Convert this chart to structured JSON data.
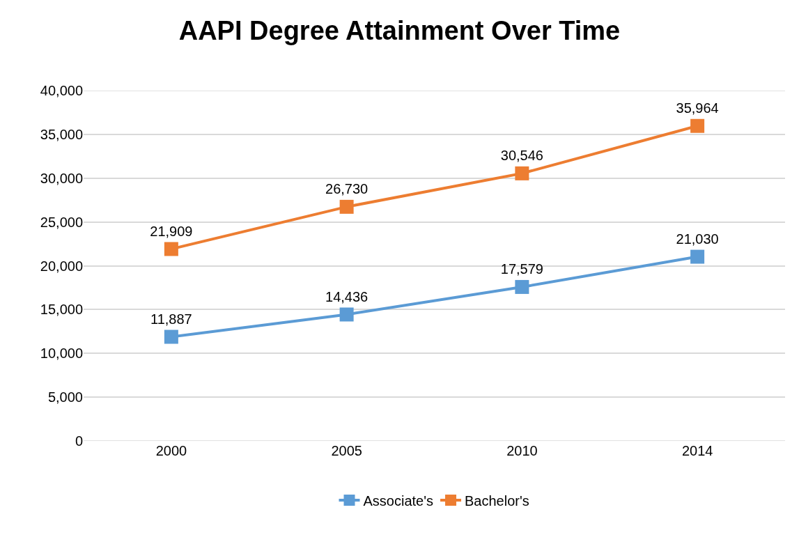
{
  "chart_data": {
    "type": "line",
    "title": "AAPI Degree Attainment Over Time",
    "categories": [
      "2000",
      "2005",
      "2010",
      "2014"
    ],
    "series": [
      {
        "name": "Associate's",
        "color": "#5b9bd5",
        "values": [
          11887,
          14436,
          17579,
          21030
        ],
        "value_labels": [
          "11,887",
          "14,436",
          "17,579",
          "21,030"
        ]
      },
      {
        "name": "Bachelor's",
        "color": "#ed7d31",
        "values": [
          21909,
          26730,
          30546,
          35964
        ],
        "value_labels": [
          "21,909",
          "26,730",
          "30,546",
          "35,964"
        ]
      }
    ],
    "ylim": [
      0,
      40000
    ],
    "yticks": [
      0,
      {
        "value": 5000,
        "label": "5,000"
      },
      {
        "value": 10000,
        "label": "10,000"
      },
      {
        "value": 15000,
        "label": "15,000"
      },
      {
        "value": 20000,
        "label": "20,000"
      },
      {
        "value": 25000,
        "label": "25,000"
      },
      {
        "value": 30000,
        "label": "30,000"
      },
      {
        "value": 35000,
        "label": "35,000"
      },
      {
        "value": 40000,
        "label": "40,000"
      }
    ],
    "grid": "y",
    "legend": "bottom",
    "marker": "square",
    "line_style": "solid"
  }
}
